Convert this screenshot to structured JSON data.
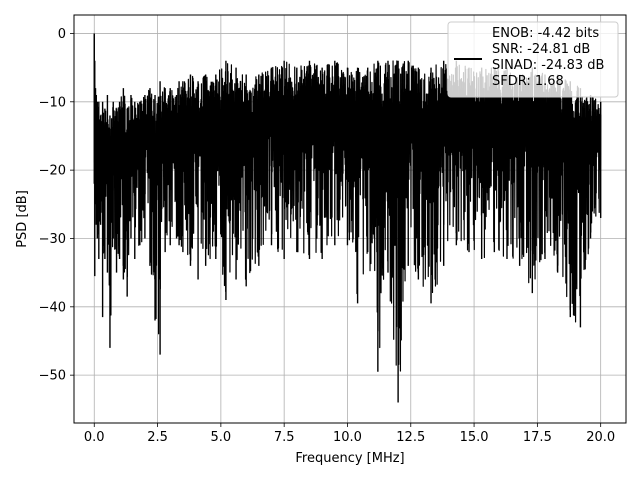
{
  "chart_data": {
    "type": "line",
    "title": "",
    "xlabel": "Frequency [MHz]",
    "ylabel": "PSD [dB]",
    "xlim": [
      -0.8,
      21.0
    ],
    "ylim": [
      -57,
      2.7
    ],
    "x_ticks": [
      0.0,
      2.5,
      5.0,
      7.5,
      10.0,
      12.5,
      15.0,
      17.5,
      20.0
    ],
    "x_tick_labels": [
      "0.0",
      "2.5",
      "5.0",
      "7.5",
      "10.0",
      "12.5",
      "15.0",
      "17.5",
      "20.0"
    ],
    "y_ticks": [
      0,
      -10,
      -20,
      -30,
      -40,
      -50
    ],
    "y_tick_labels": [
      "0",
      "−10",
      "−20",
      "−30",
      "−40",
      "−50"
    ],
    "grid": true,
    "legend_position": "top-right",
    "legend_lines": [
      "ENOB: -4.42 bits",
      "SNR: -24.81 dB",
      "SINAD: -24.83 dB",
      "SFDR: 1.68"
    ],
    "series_color": "#000000",
    "series": [
      {
        "x": [
          0.0,
          0.02,
          0.05,
          0.08,
          0.12,
          0.18,
          0.25,
          0.33,
          0.42,
          0.52,
          0.62,
          0.75,
          0.88,
          1.0,
          1.15,
          1.3,
          1.45,
          1.6,
          1.8,
          2.0,
          2.2,
          2.4,
          2.6,
          2.8,
          3.0,
          3.25,
          3.35,
          3.5,
          3.8,
          4.1,
          4.4,
          4.8,
          5.2,
          5.6,
          6.0,
          6.5,
          7.0,
          7.5,
          8.0,
          8.5,
          9.0,
          9.5,
          10.0,
          10.4,
          10.8,
          11.2,
          11.6,
          12.0,
          12.4,
          12.8,
          13.3,
          13.8,
          14.3,
          14.8,
          15.3,
          15.8,
          16.3,
          16.8,
          17.3,
          17.8,
          18.3,
          18.8,
          19.2,
          19.6,
          20.0
        ],
        "upper": [
          0,
          -4,
          -8,
          -9,
          -10,
          -10,
          -12,
          -10,
          -11,
          -9,
          -12,
          -10,
          -11,
          -10,
          -8,
          -11,
          -9,
          -10,
          -10,
          -9,
          -8,
          -9,
          -7,
          -8,
          -8,
          -9,
          -7,
          -7,
          -6,
          -7,
          -6,
          -6,
          -4,
          -5,
          -6,
          -6,
          -5,
          -4,
          -5,
          -4,
          -5,
          -4,
          -5,
          -5,
          -5,
          -4,
          -4,
          -4,
          -4,
          -5,
          -5,
          -4,
          -4,
          -5,
          -5,
          -5,
          -5,
          -6,
          -5,
          -6,
          -6,
          -7,
          -8,
          -9,
          -10
        ],
        "lower": [
          -22,
          -35.5,
          -25,
          -28,
          -30,
          -33,
          -28,
          -41.5,
          -33,
          -35,
          -46,
          -30,
          -35,
          -33,
          -36,
          -38.5,
          -30,
          -33,
          -31,
          -30,
          -34,
          -42,
          -47,
          -32,
          -31,
          -30,
          -31,
          -32,
          -34,
          -36,
          -34,
          -33,
          -39,
          -36,
          -37,
          -34,
          -31,
          -33,
          -32,
          -33,
          -33,
          -31,
          -31,
          -39.5,
          -32,
          -49.5,
          -35,
          -54,
          -34,
          -36,
          -39.5,
          -34,
          -31,
          -32,
          -33,
          -32,
          -33,
          -34,
          -38,
          -33,
          -35,
          -41.5,
          -43,
          -30,
          -27
        ]
      }
    ]
  }
}
